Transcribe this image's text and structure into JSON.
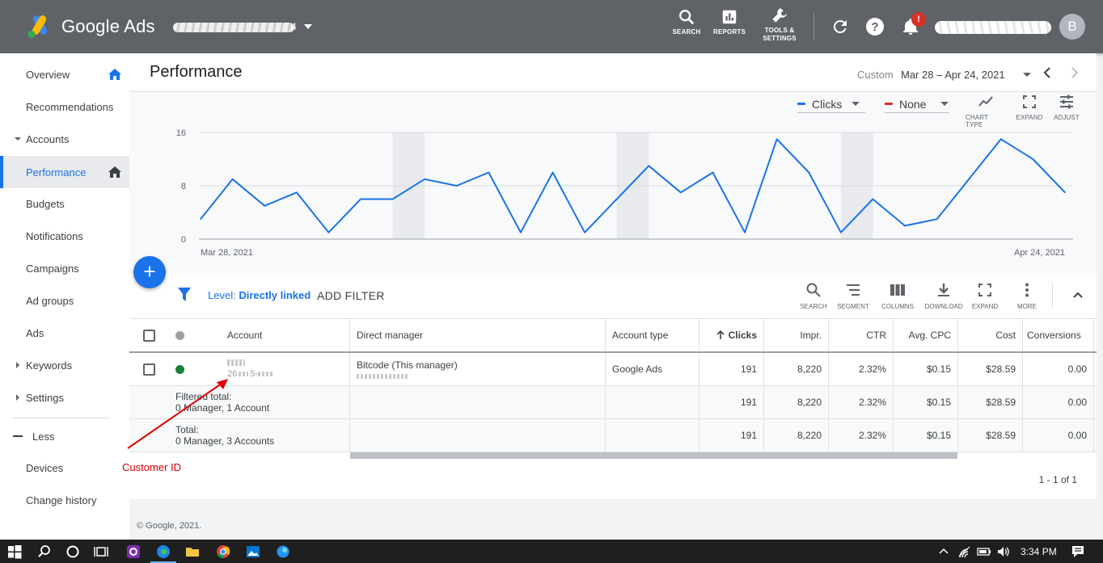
{
  "header": {
    "brand": "Google Ads",
    "account_suffix": "4",
    "tools": [
      {
        "id": "search",
        "label": "SEARCH"
      },
      {
        "id": "reports",
        "label": "REPORTS"
      },
      {
        "id": "tools",
        "label_line1": "TOOLS &",
        "label_line2": "SETTINGS"
      }
    ],
    "notification_badge": "!",
    "avatar_letter": "B",
    "colors": {
      "bar": "#5f6368",
      "badge": "#d93025"
    }
  },
  "sidebar": {
    "items": [
      {
        "label": "Overview"
      },
      {
        "label": "Recommendations"
      },
      {
        "label": "Accounts"
      },
      {
        "label": "Performance"
      },
      {
        "label": "Budgets"
      },
      {
        "label": "Notifications"
      },
      {
        "label": "Campaigns"
      },
      {
        "label": "Ad groups"
      },
      {
        "label": "Ads"
      },
      {
        "label": "Keywords"
      },
      {
        "label": "Settings"
      },
      {
        "label": "Less"
      },
      {
        "label": "Devices"
      },
      {
        "label": "Change history"
      }
    ],
    "active": "Performance"
  },
  "page": {
    "title": "Performance",
    "date_label": "Custom",
    "date_range": "Mar 28 – Apr 24, 2021"
  },
  "chart_toolbar": {
    "metric1": "Clicks",
    "metric2": "None",
    "metric1_color": "#1a73e8",
    "metric2_color": "#d93025",
    "tools": [
      {
        "label": "CHART TYPE"
      },
      {
        "label": "EXPAND"
      },
      {
        "label": "ADJUST"
      }
    ]
  },
  "chart_data": {
    "type": "line",
    "title": "",
    "xlabel": "",
    "ylabel": "",
    "x_start_label": "Mar 28, 2021",
    "x_end_label": "Apr 24, 2021",
    "yticks": [
      "16",
      "8",
      "0"
    ],
    "ylim": [
      0,
      16
    ],
    "grid": true,
    "series": [
      {
        "name": "Clicks",
        "color": "#1a73e8",
        "values": [
          3,
          9,
          5,
          7,
          1,
          6,
          6,
          9,
          8,
          10,
          1,
          10,
          1,
          6,
          11,
          7,
          10,
          1,
          15,
          10,
          1,
          6,
          2,
          3,
          9,
          15,
          12,
          7
        ]
      }
    ],
    "weekend_shading_indices": [
      6,
      13,
      20
    ]
  },
  "filter": {
    "level_prefix": "Level:",
    "level_value": "Directly linked",
    "add_filter": "ADD FILTER",
    "tools": [
      {
        "label": "SEARCH"
      },
      {
        "label": "SEGMENT"
      },
      {
        "label": "COLUMNS"
      },
      {
        "label": "DOWNLOAD"
      },
      {
        "label": "EXPAND"
      },
      {
        "label": "MORE"
      }
    ]
  },
  "table": {
    "headers": {
      "account": "Account",
      "direct_manager": "Direct manager",
      "account_type": "Account type",
      "clicks": "Clicks",
      "impr": "Impr.",
      "ctr": "CTR",
      "avg_cpc": "Avg. CPC",
      "cost": "Cost",
      "conversions": "Conversions"
    },
    "row": {
      "account_id_partial": "26",
      "account_id_mid": "5-",
      "direct_manager": "Bitcode (This manager)",
      "account_type": "Google Ads",
      "clicks": "191",
      "impr": "8,220",
      "ctr": "2.32%",
      "avg_cpc": "$0.15",
      "cost": "$28.59",
      "conversions": "0.00",
      "status_color": "#188038"
    },
    "filtered_total": {
      "label": "Filtered total:",
      "sub": "0 Manager, 1 Account",
      "clicks": "191",
      "impr": "8,220",
      "ctr": "2.32%",
      "avg_cpc": "$0.15",
      "cost": "$28.59",
      "conversions": "0.00"
    },
    "total": {
      "label": "Total:",
      "sub": "0 Manager, 3 Accounts",
      "clicks": "191",
      "impr": "8,220",
      "ctr": "2.32%",
      "avg_cpc": "$0.15",
      "cost": "$28.59",
      "conversions": "0.00"
    },
    "pager": "1 - 1 of 1"
  },
  "annotation": {
    "label": "Customer ID",
    "color": "#d00000"
  },
  "footer": "© Google, 2021.",
  "taskbar": {
    "time": "3:34 PM"
  }
}
